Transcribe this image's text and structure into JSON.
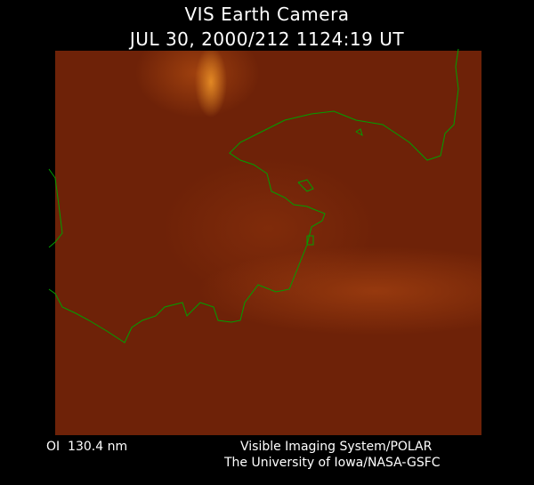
{
  "header": {
    "title": "VIS Earth Camera",
    "timestamp": "JUL 30, 2000/212 1124:19 UT"
  },
  "image": {
    "description_colors": {
      "background": "#000000",
      "image_base": "#6e2208",
      "coastline": "#00a000"
    }
  },
  "footer": {
    "wavelength": "OI  130.4 nm",
    "instrument": "Visible Imaging System/POLAR",
    "institution": "The University of Iowa/NASA-GSFC"
  }
}
